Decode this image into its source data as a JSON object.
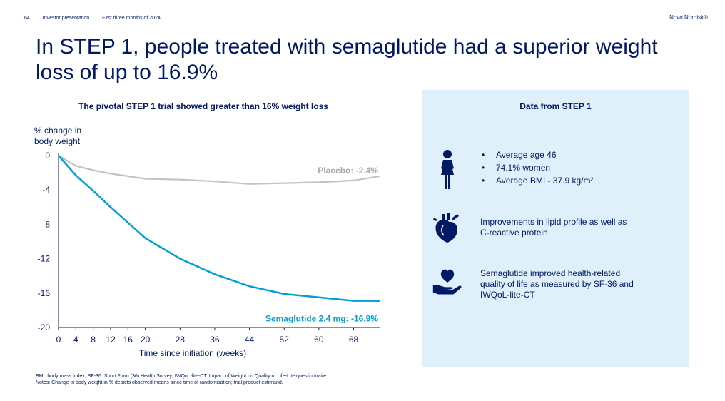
{
  "header": {
    "page_number": "64",
    "section": "Investor presentation",
    "period": "First three months of 2024",
    "brand": "Novo Nordisk®"
  },
  "title": "In STEP 1, people treated with semaglutide had a superior weight loss of up to 16.9%",
  "chart_heading": "The pivotal STEP 1 trial showed greater than 16% weight loss",
  "chart_data": {
    "type": "line",
    "title": "The pivotal STEP 1 trial showed greater than 16% weight loss",
    "ylabel": "% change in body weight",
    "xlabel": "Time since initiation (weeks)",
    "x_ticks": [
      0,
      4,
      8,
      12,
      16,
      20,
      28,
      36,
      44,
      52,
      60,
      68
    ],
    "y_ticks": [
      0,
      -4,
      -8,
      -12,
      -16,
      -20
    ],
    "xlim": [
      0,
      74
    ],
    "ylim": [
      -20,
      0
    ],
    "grid": false,
    "series": [
      {
        "name": "Placebo: -2.4%",
        "color": "#c3c3c3",
        "x": [
          0,
          4,
          8,
          12,
          16,
          20,
          28,
          36,
          44,
          52,
          60,
          68,
          74
        ],
        "y": [
          0,
          -1.2,
          -1.7,
          -2.1,
          -2.4,
          -2.7,
          -2.8,
          -3.0,
          -3.3,
          -3.2,
          -3.1,
          -2.9,
          -2.4
        ]
      },
      {
        "name": "Semaglutide 2.4 mg: -16.9%",
        "color": "#009fda",
        "x": [
          0,
          4,
          8,
          12,
          16,
          20,
          28,
          36,
          44,
          52,
          60,
          68,
          74
        ],
        "y": [
          0,
          -2.3,
          -4.1,
          -6.0,
          -7.8,
          -9.6,
          -12.0,
          -13.8,
          -15.2,
          -16.1,
          -16.5,
          -16.9,
          -16.9
        ]
      }
    ]
  },
  "panel": {
    "title": "Data from STEP 1",
    "demographics": [
      "Average age 46",
      "74.1% women",
      "Average BMI - 37.9 kg/m²"
    ],
    "lipids": [
      "Improvements in lipid profile as well as",
      "C-reactive protein"
    ],
    "quality_of_life": [
      "Semaglutide improved health-related",
      "quality of life as measured by SF-36 and",
      "IWQoL-lite-CT"
    ],
    "icons": {
      "demographics": "woman-icon",
      "lipids": "heart-organ-icon",
      "quality_of_life": "heart-in-hand-icon"
    },
    "icon_color": "#001965",
    "background": "#dff0fb"
  },
  "footnotes": [
    "BMI: body mass index; SF-36: Short Form (36) Health Survey; IWQoL-lite-CT: Impact of Weight on Quality of Life-Lite questionnaire",
    "Notes: Change in body weight in % depicts observed means since time of randomisation; trial product estimand."
  ]
}
